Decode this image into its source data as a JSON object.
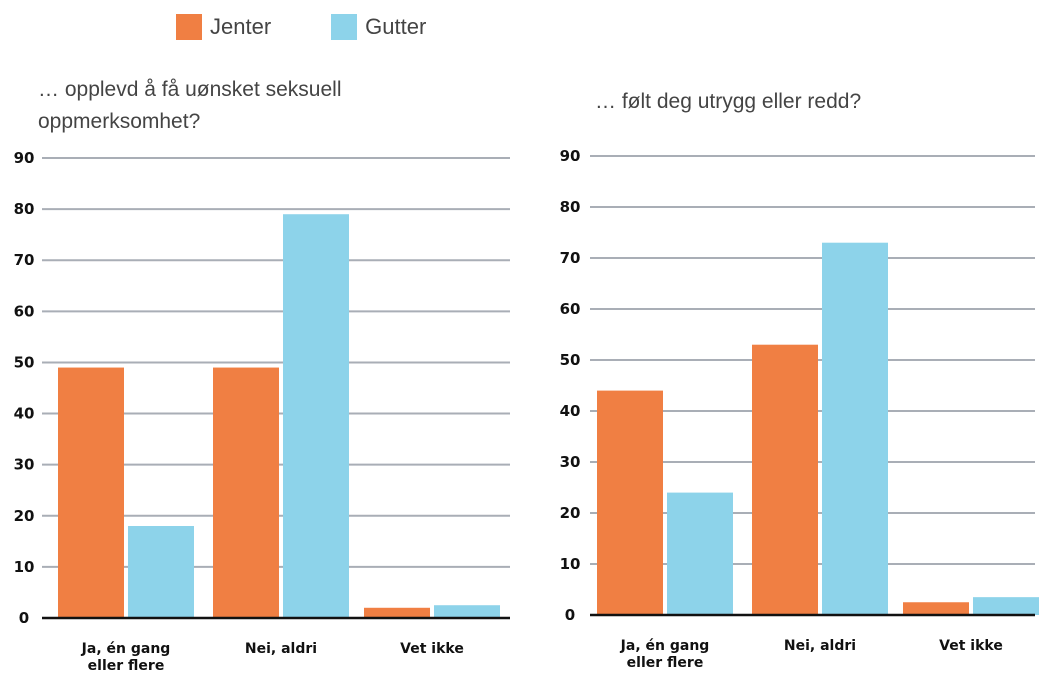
{
  "legend": {
    "items": [
      {
        "label": "Jenter",
        "color": "#f07f43"
      },
      {
        "label": "Gutter",
        "color": "#8dd3ea"
      }
    ]
  },
  "chart_data": [
    {
      "type": "bar",
      "title": "… opplevd å få uønsket seksuell oppmerksomhet?",
      "categories": [
        [
          "Ja, én gang",
          "eller flere"
        ],
        [
          "Nei, aldri"
        ],
        [
          "Vet ikke"
        ]
      ],
      "series": [
        {
          "name": "Jenter",
          "values": [
            49,
            49,
            2
          ]
        },
        {
          "name": "Gutter",
          "values": [
            18,
            79,
            2.5
          ]
        }
      ],
      "ylim": [
        0,
        90
      ],
      "yticks": [
        0,
        10,
        20,
        30,
        40,
        50,
        60,
        70,
        80,
        90
      ],
      "grid": true,
      "xlabel": "",
      "ylabel": ""
    },
    {
      "type": "bar",
      "title": "… følt deg utrygg eller redd?",
      "categories": [
        [
          "Ja, én gang",
          "eller flere"
        ],
        [
          "Nei, aldri"
        ],
        [
          "Vet ikke"
        ]
      ],
      "series": [
        {
          "name": "Jenter",
          "values": [
            44,
            53,
            2.5
          ]
        },
        {
          "name": "Gutter",
          "values": [
            24,
            73,
            3.5
          ]
        }
      ],
      "ylim": [
        0,
        90
      ],
      "yticks": [
        0,
        10,
        20,
        30,
        40,
        50,
        60,
        70,
        80,
        90
      ],
      "grid": true,
      "xlabel": "",
      "ylabel": ""
    }
  ]
}
